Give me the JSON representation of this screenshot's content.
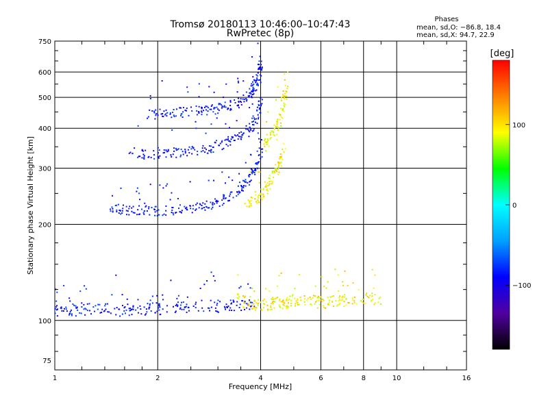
{
  "header": {
    "title_line1": "Tromsø 20180113 10:46:00–10:47:43",
    "title_line2": "RwPretec (8p)",
    "phases_label": "Phases",
    "stats_line1": "mean, sd,O: −86.8, 18.4",
    "stats_line2": "mean, sd,X:  94.7, 22.9"
  },
  "colorbar": {
    "unit_label": "[deg]",
    "ticks": [
      "100",
      "0",
      "−100"
    ],
    "tick_values": [
      100,
      0,
      -100
    ],
    "range": [
      -180,
      180
    ],
    "colors": [
      "#000000",
      "#5000a0",
      "#0000ff",
      "#00a0ff",
      "#00ffff",
      "#00ff00",
      "#ffff00",
      "#ff8000",
      "#ff0000"
    ]
  },
  "chart_data": {
    "type": "scatter",
    "xlabel": "Frequency [MHz]",
    "ylabel": "Stationary phase Virtual Height [km]",
    "x_scale": "log",
    "y_scale": "log",
    "xlim": [
      1,
      16
    ],
    "ylim": [
      70,
      750
    ],
    "x_ticks": [
      1,
      2,
      4,
      6,
      8,
      10,
      16
    ],
    "x_tick_labels": [
      "1",
      "2",
      "4",
      "6",
      "8",
      "10",
      "16"
    ],
    "x_grid": [
      2,
      4,
      6,
      8,
      10
    ],
    "y_ticks": [
      75,
      100,
      200,
      300,
      400,
      500,
      600,
      750
    ],
    "y_tick_labels": [
      "75",
      "100",
      "200",
      "300",
      "400",
      "500",
      "600",
      "750"
    ],
    "y_grid": [
      100,
      200,
      300,
      400,
      500,
      600
    ],
    "color_variable": "phase [deg]",
    "series": [
      {
        "name": "O",
        "color_phase_mean": -86.8,
        "color_phase_sd": 18.4,
        "traces": [
          {
            "f": [
              1.0,
              1.1,
              1.2,
              1.4,
              1.6,
              1.8,
              2.0,
              2.3,
              2.6,
              3.0,
              3.4,
              3.8
            ],
            "h": [
              107,
              107,
              109,
              108,
              108,
              108,
              109,
              110,
              111,
              111,
              112,
              112
            ]
          },
          {
            "f": [
              1.45,
              1.6,
              1.8,
              2.0,
              2.3,
              2.6,
              2.9,
              3.2,
              3.5,
              3.7,
              3.9,
              4.0
            ],
            "h": [
              225,
              222,
              222,
              220,
              222,
              226,
              232,
              242,
              258,
              275,
              305,
              340
            ]
          },
          {
            "f": [
              1.65,
              1.9,
              2.2,
              2.5,
              2.8,
              3.1,
              3.4,
              3.7,
              3.9,
              4.0
            ],
            "h": [
              340,
              330,
              335,
              338,
              345,
              355,
              370,
              395,
              430,
              480
            ]
          },
          {
            "f": [
              1.85,
              2.1,
              2.4,
              2.7,
              3.0,
              3.3,
              3.6,
              3.8,
              3.95,
              4.0
            ],
            "h": [
              440,
              445,
              450,
              455,
              460,
              472,
              495,
              530,
              580,
              640
            ]
          }
        ]
      },
      {
        "name": "X",
        "color_phase_mean": 94.7,
        "color_phase_sd": 22.9,
        "traces": [
          {
            "f": [
              3.4,
              3.8,
              4.1,
              4.4,
              4.7,
              5.0,
              5.5,
              6.0,
              6.5,
              7.0,
              8.0,
              9.0
            ],
            "h": [
              117,
              113,
              112,
              113,
              114,
              115,
              115,
              114,
              115,
              116,
              116,
              117
            ]
          },
          {
            "f": [
              3.6,
              3.9,
              4.1,
              4.3,
              4.5,
              4.7
            ],
            "h": [
              232,
              240,
              255,
              275,
              300,
              340
            ]
          },
          {
            "f": [
              4.1,
              4.3,
              4.5,
              4.65,
              4.75
            ],
            "h": [
              350,
              380,
              410,
              470,
              560
            ]
          }
        ]
      }
    ]
  }
}
